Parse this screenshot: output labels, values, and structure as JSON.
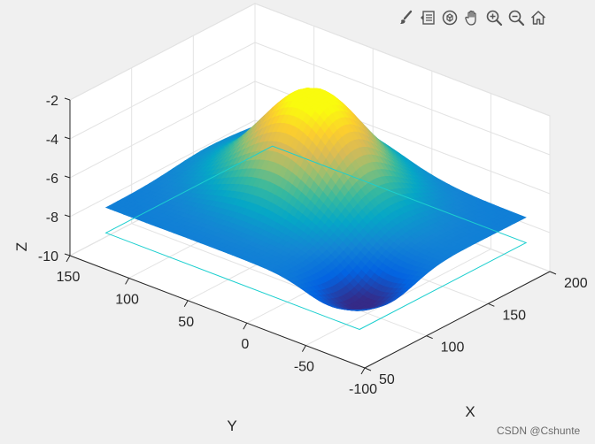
{
  "toolbar": {
    "items": [
      {
        "name": "brush-icon"
      },
      {
        "name": "legend-icon"
      },
      {
        "name": "rotate-3d-icon"
      },
      {
        "name": "pan-hand-icon"
      },
      {
        "name": "zoom-in-icon"
      },
      {
        "name": "zoom-out-icon"
      },
      {
        "name": "home-icon"
      }
    ],
    "icon_color": "#555555"
  },
  "watermark": "CSDN @Cshunte",
  "chart_data": {
    "type": "surface",
    "title": "",
    "xlabel": "X",
    "ylabel": "Y",
    "zlabel": "Z",
    "xlim": [
      50,
      200
    ],
    "ylim": [
      -100,
      150
    ],
    "zlim": [
      -10,
      -2
    ],
    "xticks": [
      "50",
      "100",
      "150",
      "200"
    ],
    "yticks": [
      "150",
      "100",
      "50",
      "0",
      "-50",
      "-100"
    ],
    "zticks": [
      "-2",
      "-4",
      "-6",
      "-8",
      "-10"
    ],
    "grid": true,
    "colormap": "parula",
    "colormap_colors": [
      "#352a87",
      "#0363e1",
      "#1485d4",
      "#06a7c6",
      "#38b99e",
      "#92bf73",
      "#d9ba56",
      "#fcce2e",
      "#f9fb0e"
    ],
    "base_outline_color": "#1ccfcf",
    "surface_peak": {
      "x": 140,
      "y": 40,
      "z": -2.6
    },
    "surface_low": {
      "x": 85,
      "y": -60,
      "z": -8.6
    }
  }
}
